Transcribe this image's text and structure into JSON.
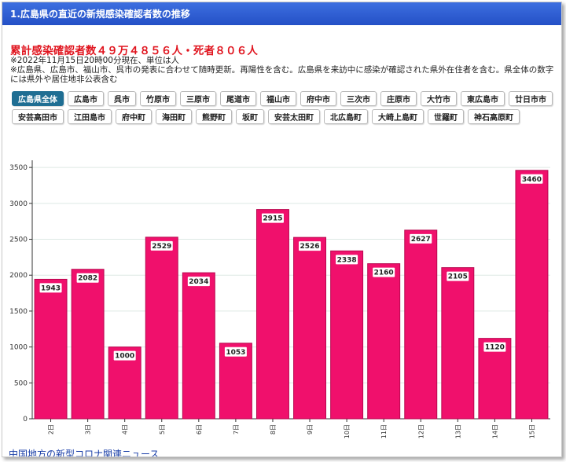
{
  "header": {
    "title": "1.広島県の直近の新規感染確認者数の推移"
  },
  "summary": {
    "text": "累計感染確認者数４９万４８５６人・死者８０６人"
  },
  "notes": [
    "※2022年11月15日20時00分現在、単位は人",
    "※広島県、広島市、福山市、呉市の発表に合わせて随時更新。再陽性を含む。広島県を来訪中に感染が確認された県外在住者を含む。県全体の数字には県外や居住地非公表含む"
  ],
  "tabs": [
    {
      "label": "広島県全体",
      "active": true
    },
    {
      "label": "広島市"
    },
    {
      "label": "呉市"
    },
    {
      "label": "竹原市"
    },
    {
      "label": "三原市"
    },
    {
      "label": "尾道市"
    },
    {
      "label": "福山市"
    },
    {
      "label": "府中市"
    },
    {
      "label": "三次市"
    },
    {
      "label": "庄原市"
    },
    {
      "label": "大竹市"
    },
    {
      "label": "東広島市"
    },
    {
      "label": "廿日市市"
    },
    {
      "label": "安芸高田市"
    },
    {
      "label": "江田島市"
    },
    {
      "label": "府中町"
    },
    {
      "label": "海田町"
    },
    {
      "label": "熊野町"
    },
    {
      "label": "坂町"
    },
    {
      "label": "安芸太田町"
    },
    {
      "label": "北広島町"
    },
    {
      "label": "大崎上島町"
    },
    {
      "label": "世羅町"
    },
    {
      "label": "神石高原町"
    }
  ],
  "chart_data": {
    "type": "bar",
    "categories": [
      "2日",
      "3日",
      "4日",
      "5日",
      "6日",
      "7日",
      "8日",
      "9日",
      "10日",
      "11日",
      "12日",
      "13日",
      "14日",
      "15日"
    ],
    "values": [
      1943,
      2082,
      1000,
      2529,
      2034,
      1053,
      2915,
      2526,
      2338,
      2160,
      2627,
      2105,
      1120,
      3460
    ],
    "yticks": [
      0,
      500,
      1000,
      1500,
      2000,
      2500,
      3000,
      3500
    ],
    "ylim": [
      0,
      3600
    ],
    "bar_color": "#f0106c",
    "grid": true,
    "title": "",
    "xlabel": "",
    "ylabel": ""
  },
  "footer": {
    "link_text": "中国地方の新型コロナ関連ニュース"
  }
}
